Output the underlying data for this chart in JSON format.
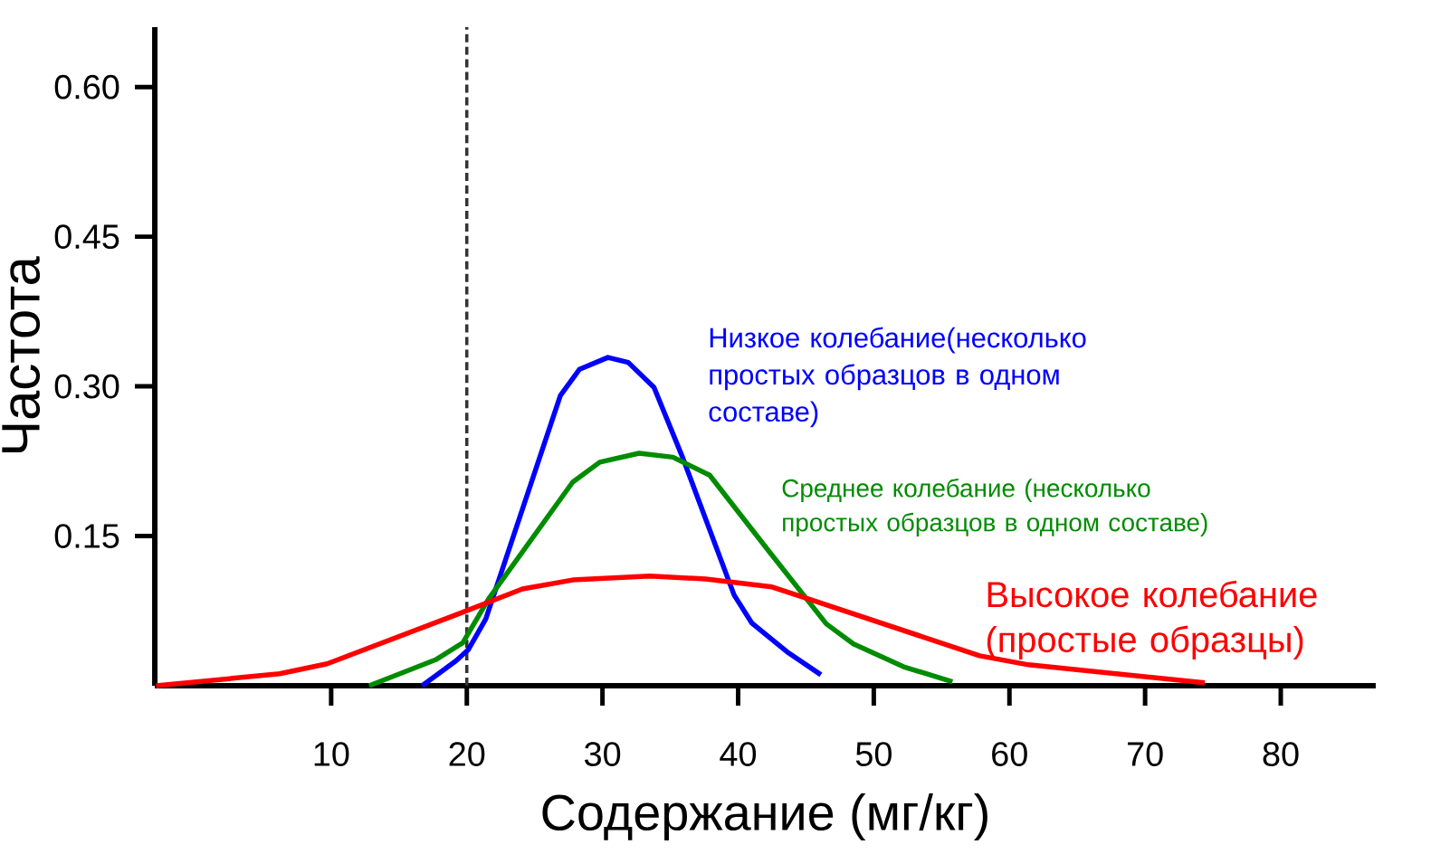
{
  "chart_data": {
    "type": "line",
    "xlabel": "Содержание (мг/кг)",
    "ylabel": "Частота",
    "xlim": [
      -3,
      87
    ],
    "ylim": [
      0,
      0.66
    ],
    "xticks": [
      10,
      20,
      30,
      40,
      50,
      60,
      70,
      80
    ],
    "yticks": [
      {
        "value": 0.15,
        "label": "0.15"
      },
      {
        "value": 0.3,
        "label": "0.30"
      },
      {
        "value": 0.45,
        "label": "0.45"
      },
      {
        "value": 0.6,
        "label": "0.60"
      }
    ],
    "ref_lines": [
      {
        "axis": "x",
        "value": 20,
        "color": "#333333",
        "line_style": "dashed"
      }
    ],
    "series": [
      {
        "name": "Низкое колебание(несколько простых образцов в одном составе)",
        "color": "#0000ff",
        "x": [
          16.7,
          19.2,
          20.1,
          21.4,
          26.9,
          28.3,
          30.4,
          31.9,
          33.8,
          35.9,
          39.7,
          41.0,
          43.7,
          46.1
        ],
        "values": [
          0,
          0.025,
          0.036,
          0.067,
          0.291,
          0.317,
          0.329,
          0.324,
          0.299,
          0.229,
          0.091,
          0.063,
          0.033,
          0.011
        ]
      },
      {
        "name": "Среднее колебание (несколько простых образцов в одном составе)",
        "color": "#008c00",
        "x": [
          12.8,
          17.7,
          19.7,
          21.6,
          27.8,
          29.8,
          32.7,
          35.2,
          37.9,
          42.2,
          46.5,
          48.5,
          52.2,
          55.8
        ],
        "values": [
          0,
          0.026,
          0.043,
          0.087,
          0.204,
          0.224,
          0.233,
          0.229,
          0.211,
          0.136,
          0.062,
          0.042,
          0.019,
          0.004
        ]
      },
      {
        "name": "Высокое колебание (простые образцы)",
        "color": "#ff0000",
        "x": [
          -2.9,
          6.2,
          9.7,
          19.2,
          24.1,
          27.8,
          33.5,
          37.6,
          42.5,
          45.2,
          57.8,
          61.4,
          74.4
        ],
        "values": [
          0,
          0.012,
          0.022,
          0.071,
          0.097,
          0.106,
          0.11,
          0.107,
          0.099,
          0.087,
          0.03,
          0.021,
          0.003
        ]
      }
    ]
  }
}
